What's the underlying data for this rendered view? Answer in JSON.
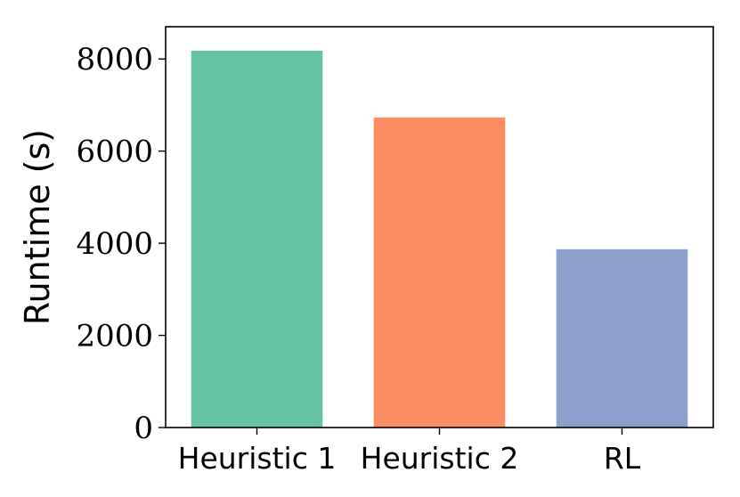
{
  "chart_data": {
    "type": "bar",
    "title": "",
    "xlabel": "",
    "ylabel": "Runtime (s)",
    "categories": [
      "Heuristic 1",
      "Heuristic 2",
      "RL"
    ],
    "values": [
      8180,
      6730,
      3870
    ],
    "colors": [
      "#66c2a5",
      "#fc8d62",
      "#8da0cb"
    ],
    "ylim": [
      0,
      8700
    ],
    "yticks": [
      0,
      2000,
      4000,
      6000,
      8000
    ],
    "ytick_labels": [
      "0",
      "2000",
      "4000",
      "6000",
      "8000"
    ],
    "grid": false,
    "legend": "none"
  }
}
